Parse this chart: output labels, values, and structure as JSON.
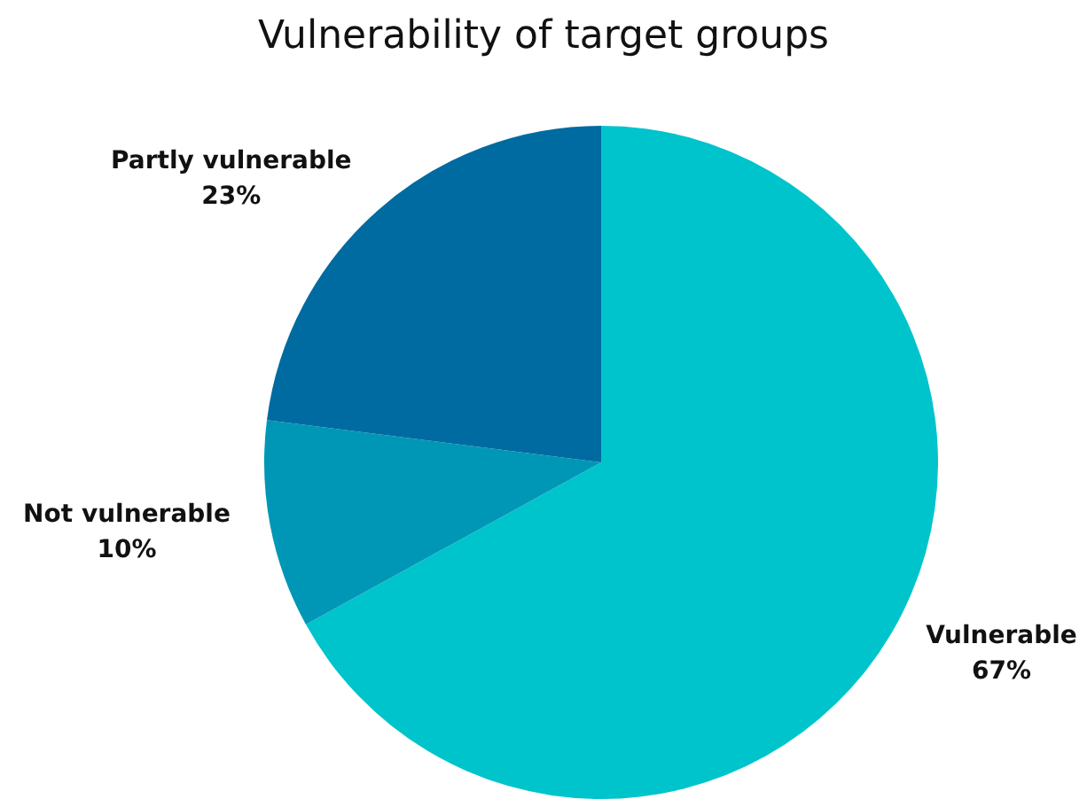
{
  "chart_data": {
    "type": "pie",
    "title": "Vulnerability of target groups",
    "categories": [
      "Vulnerable",
      "Not vulnerable",
      "Partly vulnerable"
    ],
    "values": [
      67,
      10,
      23
    ],
    "value_labels": [
      "67%",
      "10%",
      "23%"
    ],
    "colors": [
      "#00c4cc",
      "#0097b6",
      "#006ba0"
    ],
    "legend": false
  }
}
